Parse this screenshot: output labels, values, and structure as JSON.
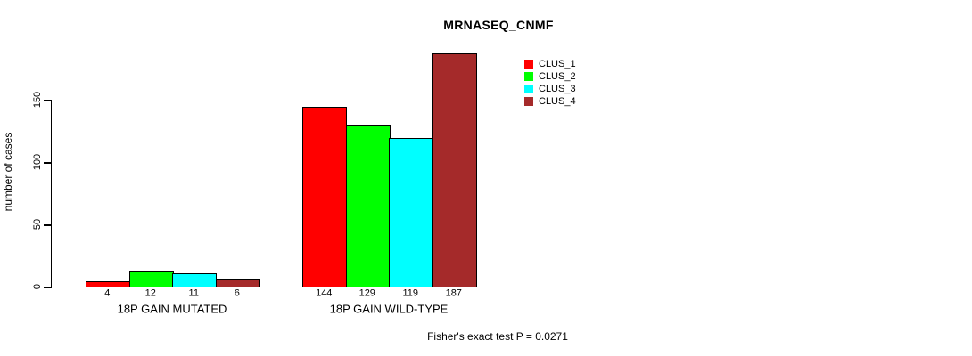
{
  "page": {
    "background_color": "#FFFFFF",
    "text_color": "#000000"
  },
  "chart_data": {
    "type": "bar",
    "title": "MRNASEQ_CNMF",
    "ylabel": "number of cases",
    "xlabel": "",
    "categories": [
      "18P GAIN MUTATED",
      "18P GAIN WILD-TYPE"
    ],
    "series": [
      {
        "name": "CLUS_1",
        "color": "#FF0000",
        "values": [
          4,
          144
        ]
      },
      {
        "name": "CLUS_2",
        "color": "#00FF00",
        "values": [
          12,
          129
        ]
      },
      {
        "name": "CLUS_3",
        "color": "#00FFFF",
        "values": [
          11,
          119
        ]
      },
      {
        "name": "CLUS_4",
        "color": "#A52A2A",
        "values": [
          6,
          187
        ]
      }
    ],
    "yticks": [
      0,
      50,
      100,
      150
    ],
    "ylim": [
      0,
      190
    ],
    "grid": false,
    "bar_value_labels_shown": true,
    "legend_position": "top-right",
    "legend_entries": [
      "CLUS_1",
      "CLUS_2",
      "CLUS_3",
      "CLUS_4"
    ],
    "bar_border_color": "#000000",
    "axis_color": "#000000",
    "annotation": "Fisher's exact test P = 0.0271"
  }
}
